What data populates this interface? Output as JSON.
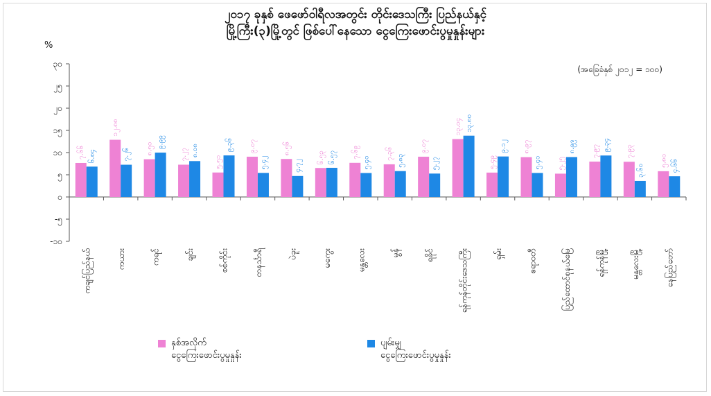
{
  "title_line1": "၂၀၁၇ ခုနှစ် ဖေဖော်ဝါရီလအတွင်း တိုင်းဒေသကြီး ပြည်နယ်နှင့်",
  "title_line2": "မြို့ကြီး(၃)မြို့တွင် ဖြစ်ပေါ်နေသော ငွေကြေးဖောင်းပွမှုနှုန်းများ",
  "base_note": "(အခြေခံနှစ် ၂၀၁၂ = ၁၀၀)",
  "colors": {
    "yoy": "#ee82d4",
    "mom": "#1e88e5"
  },
  "chart_data": {
    "type": "bar",
    "ylabel": "%",
    "ylim": [
      -10,
      30
    ],
    "yticks": [
      -10,
      -5,
      0,
      5,
      10,
      15,
      20,
      25,
      30
    ],
    "ytick_labels": [
      "-၁၀",
      "-၅",
      "၀",
      "၅",
      "၁၀",
      "၁၅",
      "၂၀",
      "၂၅",
      "၃၀"
    ],
    "grid": false,
    "legend_position": "bottom-left",
    "categories": [
      "ကချင်ပြည်နယ်",
      "ကယား",
      "ကရင်",
      "ချင်း",
      "စစ်ကိုင်း",
      "တနင်္သာရီ",
      "ပဲခူး",
      "မကွေး",
      "မန္တလေး",
      "မွန်",
      "ရခိုင်",
      "ရန်ကုန်",
      "ရှမ်း",
      "ဧရာဝတီ",
      "နေပြည်တော်",
      "ရန်ကုန်မြို့",
      "မန္တလေးမြို့",
      "နေပြည်တော်"
    ],
    "category_labels": [
      "ကချင်ပြည်နယ်",
      "ကယား",
      "ကရင်",
      "ချင်း",
      "စစ်ကိုင်း",
      "တနင်္သာရီ",
      "ပဲခူး",
      "မကွေး",
      "မန္တလေး",
      "မွန်",
      "ရခိုင်",
      "ရန်ကုန်တိုင်းဒေသကြီး",
      "ရှမ်း",
      "ဧရာဝတီ",
      "ပြည်ထောင်စုနယ်မြေ",
      "ရန်ကုန်မြို့",
      "မန္တလေးမြို့",
      "နေပြည်တော်"
    ],
    "series": [
      {
        "name": "နှစ်အလိုက် ငွေကြေးဖောင်းပွမှုနှုန်း",
        "values": [
          7.66,
          12.88,
          8.5,
          7.27,
          5.51,
          9.07,
          8.56,
          6.53,
          7.69,
          7.36,
          9.07,
          13.04,
          5.49,
          8.97,
          5.25,
          7.97,
          7.93,
          5.8
        ],
        "labels": [
          "၇.၆၆",
          "၁၂.၈၈",
          "၈.၅၀",
          "၇.၂၇",
          "၅.၅၁",
          "၉.၀၇",
          "၈.၅၆",
          "၆.၅၃",
          "၇.၆၉",
          "၇.၃၆",
          "၉.၀၇",
          "၁၃.၀၄",
          "၅.၄၉",
          "၈.၉၇",
          "၅.၂၅",
          "၇.၉၇",
          "၇.၉၃",
          "၅.၈၀"
        ]
      },
      {
        "name": "ပျမ်းမျှ ငွေကြေးဖောင်းပွမှုနှုန်း",
        "values": [
          6.84,
          7.26,
          9.99,
          8.08,
          9.36,
          5.42,
          4.72,
          6.57,
          5.4,
          5.83,
          5.27,
          13.8,
          9.12,
          5.41,
          8.99,
          9.34,
          3.6,
          4.66
        ],
        "labels": [
          "၆.၈၄",
          "၇.၂၆",
          "၉.၉၉",
          "၈.၀၈",
          "၉.၃၆",
          "၅.၄၂",
          "၄.၇၂",
          "၆.၅၇",
          "၅.၄၀",
          "၅.၈၃",
          "၅.၂၇",
          "၁၃.၈၀",
          "၉.၁၂",
          "၅.၄၁",
          "၈.၉၉",
          "၉.၃၄",
          "၃.၆၀",
          "၄.၆၆"
        ]
      }
    ]
  },
  "legend": [
    {
      "key": "yoy",
      "text": "နှစ်အလိုက်\nငွေကြေးဖောင်းပွမှုနှုန်း"
    },
    {
      "key": "mom",
      "text": "ပျမ်းမျှ\nငွေကြေးဖောင်းပွမှုနှုန်း"
    }
  ]
}
